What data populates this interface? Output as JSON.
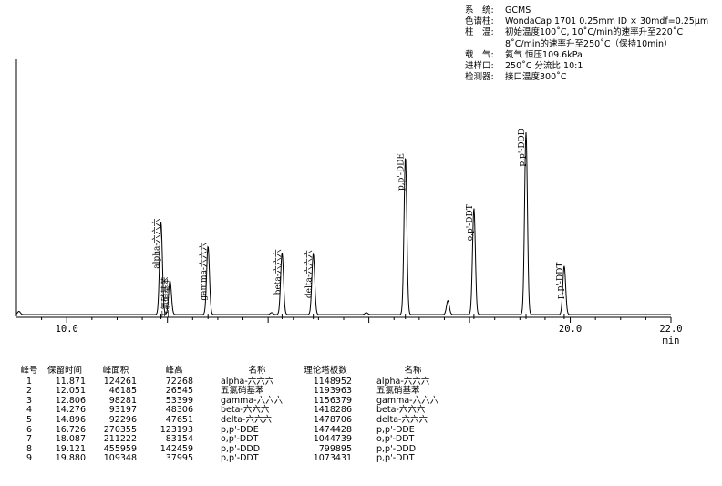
{
  "instrument": {
    "rows": [
      {
        "key": "系　统:",
        "value": "GCMS"
      },
      {
        "key": "色谱柱:",
        "value": "WondaCap 1701 0.25mm ID × 30mdf=0.25μm"
      },
      {
        "key": "柱　温:",
        "value": "初始温度100˚C, 10˚C/min的速率升至220˚C"
      },
      {
        "key": "",
        "value": "8˚C/min的速率升至250˚C（保持10min）"
      },
      {
        "key": "载　气:",
        "value": "氦气 恒压109.6kPa"
      },
      {
        "key": "进样口:",
        "value": "250˚C 分流比 10:1"
      },
      {
        "key": "检测器:",
        "value": "接口温度300˚C"
      }
    ]
  },
  "chart_data": {
    "type": "line",
    "x_unit": "min",
    "xlim": [
      9.0,
      22.0
    ],
    "ticks": [
      {
        "value": 10.0,
        "label": "10.0"
      },
      {
        "value": 20.0,
        "label": "20.0"
      },
      {
        "value": 22.0,
        "label": "22.0"
      }
    ],
    "peaks": [
      {
        "rt": 11.871,
        "height": 72268,
        "label": "alpha-六六六"
      },
      {
        "rt": 12.051,
        "height": 26545,
        "label": "五氯硝基苯"
      },
      {
        "rt": 12.806,
        "height": 53399,
        "label": "gamma-六六六"
      },
      {
        "rt": 14.276,
        "height": 48306,
        "label": "beta-六六六"
      },
      {
        "rt": 14.896,
        "height": 47651,
        "label": "delta-六六六"
      },
      {
        "rt": 16.726,
        "height": 123193,
        "label": "p,p'-DDE"
      },
      {
        "rt": 18.087,
        "height": 83154,
        "label": "o,p'-DDT"
      },
      {
        "rt": 19.121,
        "height": 142459,
        "label": "p,p'-DDD"
      },
      {
        "rt": 19.88,
        "height": 37995,
        "label": "p,p'-DDT"
      }
    ],
    "minor_peaks": [
      {
        "rt": 9.05,
        "height": 2500
      },
      {
        "rt": 14.07,
        "height": 1500
      },
      {
        "rt": 15.95,
        "height": 1500
      },
      {
        "rt": 17.57,
        "height": 11000
      }
    ],
    "table": {
      "headers": [
        "峰号",
        "保留时间",
        "峰面积",
        "峰高",
        "名称",
        "理论塔板数",
        "名称"
      ],
      "rows": [
        [
          "1",
          "11.871",
          "124261",
          "72268",
          "alpha-六六六",
          "1148952",
          "alpha-六六六"
        ],
        [
          "2",
          "12.051",
          "46185",
          "26545",
          "五氯硝基苯",
          "1193963",
          "五氯硝基苯"
        ],
        [
          "3",
          "12.806",
          "98281",
          "53399",
          "gamma-六六六",
          "1156379",
          "gamma-六六六"
        ],
        [
          "4",
          "14.276",
          "93197",
          "48306",
          "beta-六六六",
          "1418286",
          "beta-六六六"
        ],
        [
          "5",
          "14.896",
          "92296",
          "47651",
          "delta-六六六",
          "1478706",
          "delta-六六六"
        ],
        [
          "6",
          "16.726",
          "270355",
          "123193",
          "p,p'-DDE",
          "1474428",
          "p,p'-DDE"
        ],
        [
          "7",
          "18.087",
          "211222",
          "83154",
          "o,p'-DDT",
          "1044739",
          "o,p'-DDT"
        ],
        [
          "8",
          "19.121",
          "455959",
          "142459",
          "p,p'-DDD",
          "799895",
          "p,p'-DDD"
        ],
        [
          "9",
          "19.880",
          "109348",
          "37995",
          "p,p'-DDT",
          "1073431",
          "p,p'-DDT"
        ]
      ]
    }
  }
}
